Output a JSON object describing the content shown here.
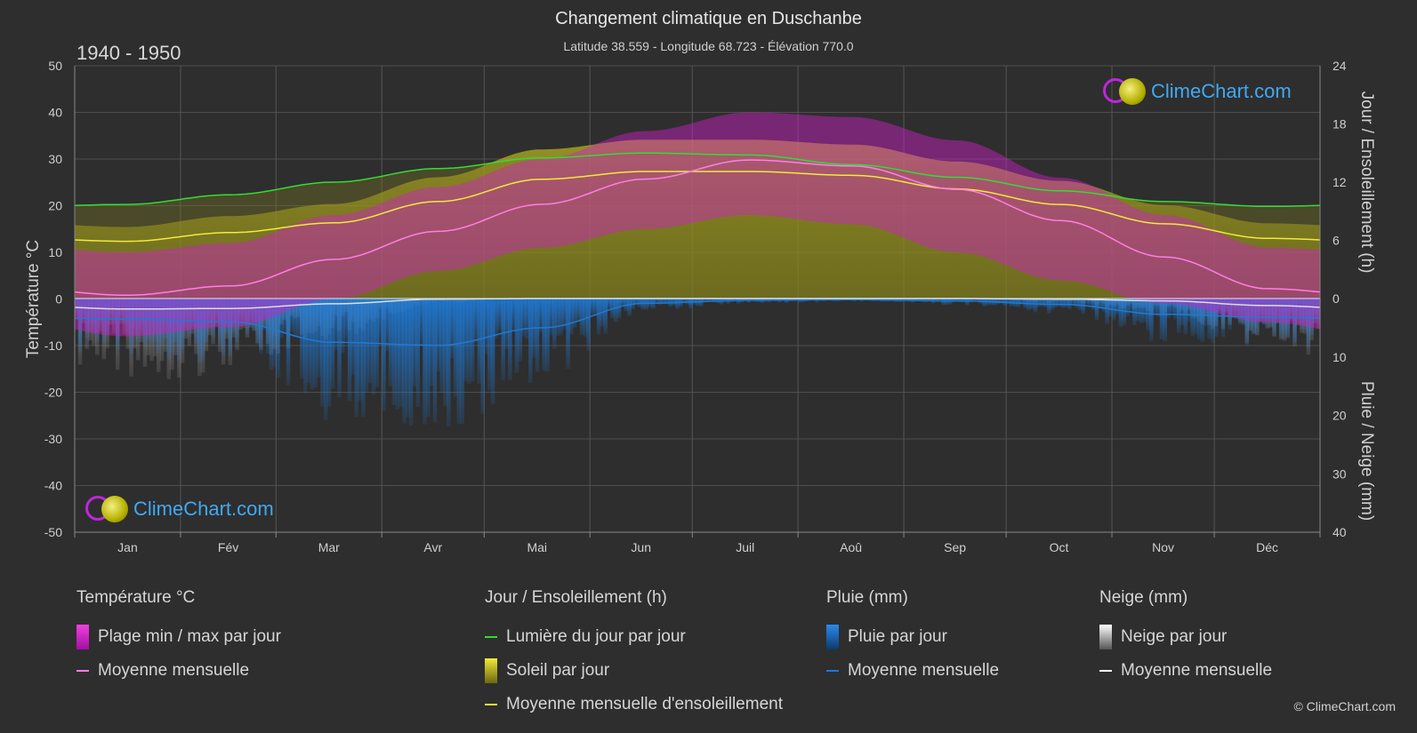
{
  "header": {
    "title": "Changement climatique en Duschanbe",
    "subtitle": "Latitude 38.559 - Longitude 68.723 - Élévation 770.0",
    "period": "1940 - 1950"
  },
  "logo_text": "ClimeChart.com",
  "credit": "© ClimeChart.com",
  "colors": {
    "background": "#2e2e2e",
    "temp_range": "#d020c8",
    "temp_mean": "#ff7ee6",
    "daylight": "#33dd33",
    "sunshine": "#b5b020",
    "sunshine_mean": "#f2ea3a",
    "rain": "#1e7ad6",
    "snow": "#dddddd"
  },
  "chart_data": {
    "type": "line",
    "months": [
      "Jan",
      "Fév",
      "Mar",
      "Avr",
      "Mai",
      "Jun",
      "Juil",
      "Aoû",
      "Sep",
      "Oct",
      "Nov",
      "Déc"
    ],
    "y_left": {
      "label": "Température °C",
      "ticks": [
        50,
        40,
        30,
        20,
        10,
        0,
        -10,
        -20,
        -30,
        -40,
        -50
      ],
      "range": [
        -50,
        50
      ]
    },
    "y_right_top": {
      "label": "Jour / Ensoleillement (h)",
      "ticks": [
        24,
        18,
        12,
        6,
        0
      ],
      "range": [
        0,
        24
      ]
    },
    "y_right_bottom": {
      "label": "Pluie / Neige (mm)",
      "ticks": [
        10,
        20,
        30,
        40
      ],
      "range": [
        0,
        40
      ]
    },
    "series": [
      {
        "name": "Moyenne mensuelle",
        "group": "temperature",
        "unit": "°C",
        "values": [
          0.8,
          2.8,
          8.5,
          14.5,
          20.3,
          25.7,
          29.8,
          28.5,
          23.5,
          16.8,
          9.0,
          2.2
        ]
      },
      {
        "name": "Plage min / max par jour",
        "group": "temperature",
        "unit": "°C",
        "min": [
          -8,
          -6,
          0,
          6,
          11,
          15,
          18,
          16,
          10,
          4,
          -1,
          -5
        ],
        "max": [
          10,
          12,
          18,
          24,
          30,
          36,
          40,
          39,
          34,
          26,
          18,
          11
        ]
      },
      {
        "name": "Lumière du jour par jour",
        "group": "sun",
        "unit": "h",
        "values": [
          9.7,
          10.7,
          12.0,
          13.4,
          14.5,
          15.0,
          14.8,
          13.8,
          12.5,
          11.1,
          10.0,
          9.5
        ]
      },
      {
        "name": "Moyenne mensuelle d'ensoleillement",
        "group": "sun",
        "unit": "h",
        "values": [
          5.9,
          6.8,
          7.8,
          10.0,
          12.3,
          13.1,
          13.1,
          12.7,
          11.3,
          9.7,
          7.7,
          6.2
        ]
      },
      {
        "name": "Pluie par jour",
        "group": "precip",
        "unit": "mm",
        "monthly_mean": [
          3.5,
          4.0,
          7.5,
          8.0,
          5.0,
          0.8,
          0.3,
          0.2,
          0.4,
          1.0,
          2.7,
          3.2
        ]
      },
      {
        "name": "Neige par jour",
        "group": "precip",
        "unit": "mm",
        "monthly_mean": [
          1.8,
          1.7,
          0.9,
          0.1,
          0.0,
          0.0,
          0.0,
          0.0,
          0.0,
          0.1,
          0.4,
          1.2
        ]
      }
    ],
    "grid": true
  },
  "legend": {
    "temperature": {
      "head": "Température °C",
      "items": [
        "Plage min / max par jour",
        "Moyenne mensuelle"
      ]
    },
    "sun": {
      "head": "Jour / Ensoleillement (h)",
      "items": [
        "Lumière du jour par jour",
        "Soleil par jour",
        "Moyenne mensuelle d'ensoleillement"
      ]
    },
    "rain": {
      "head": "Pluie (mm)",
      "items": [
        "Pluie par jour",
        "Moyenne mensuelle"
      ]
    },
    "snow": {
      "head": "Neige (mm)",
      "items": [
        "Neige par jour",
        "Moyenne mensuelle"
      ]
    }
  }
}
